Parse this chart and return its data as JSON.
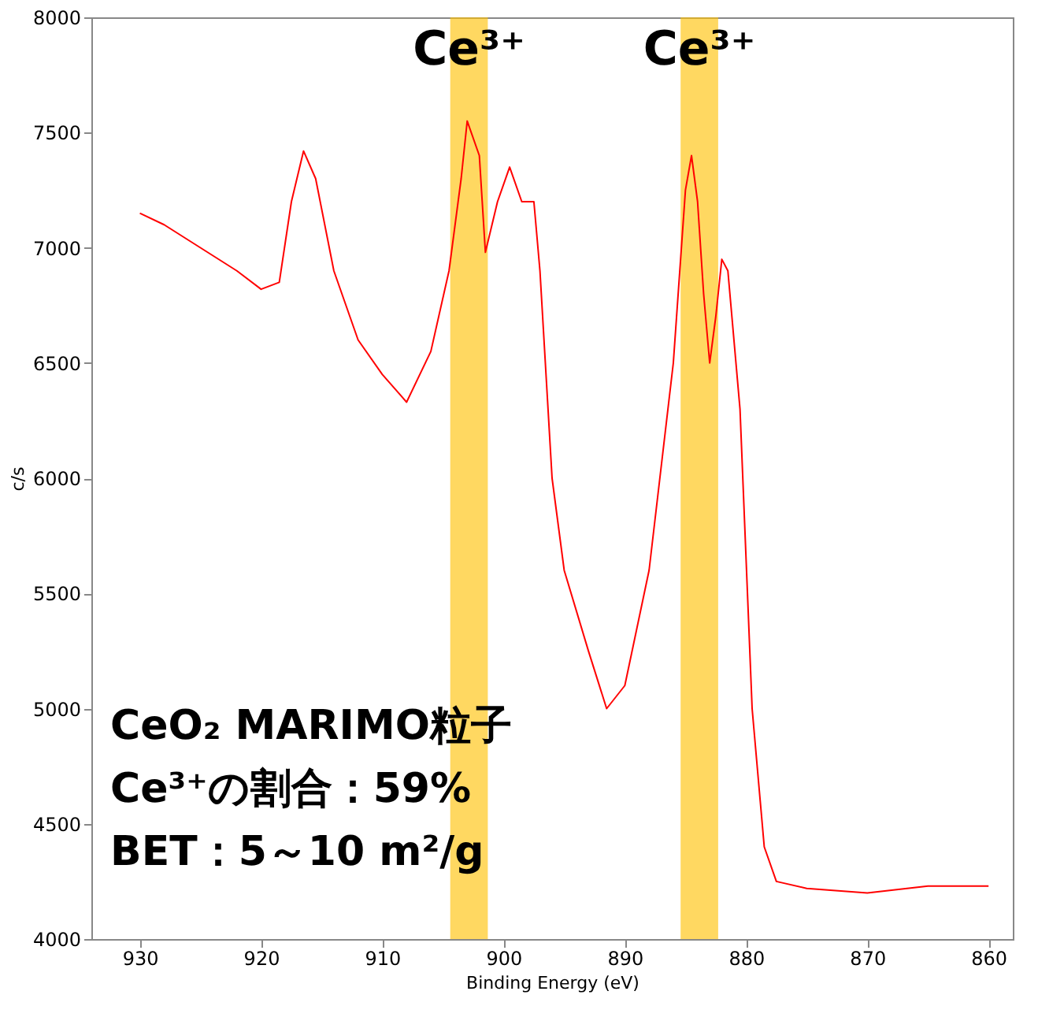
{
  "chart_data": {
    "type": "line",
    "xlabel": "Binding Energy (eV)",
    "ylabel": "c/s",
    "x": [
      930,
      928,
      925,
      922,
      920,
      918.5,
      917.5,
      916.5,
      915.5,
      914,
      912,
      910,
      908,
      906,
      904.5,
      903.5,
      903,
      902,
      901.5,
      900.5,
      899.5,
      898.5,
      897.5,
      897,
      896,
      895,
      893,
      891.5,
      890,
      888,
      886,
      885,
      884.5,
      884,
      883.5,
      883,
      882.5,
      882,
      881.5,
      880.5,
      879.5,
      878.5,
      877.5,
      875,
      870,
      865,
      860
    ],
    "series": [
      {
        "color": "#ff0000",
        "values": [
          7150,
          7100,
          7000,
          6900,
          6820,
          6850,
          7200,
          7420,
          7300,
          6900,
          6600,
          6450,
          6330,
          6550,
          6900,
          7300,
          7550,
          7400,
          6980,
          7200,
          7350,
          7200,
          7200,
          6900,
          6000,
          5600,
          5250,
          5000,
          5100,
          5600,
          6500,
          7250,
          7400,
          7200,
          6800,
          6500,
          6700,
          6950,
          6900,
          6300,
          5000,
          4400,
          4250,
          4220,
          4200,
          4230,
          4230
        ]
      }
    ],
    "xlim": [
      934,
      858
    ],
    "xticks": [
      930,
      920,
      910,
      900,
      890,
      880,
      870,
      860
    ],
    "ylim": [
      4000,
      8000
    ],
    "yticks": [
      4000,
      4500,
      5000,
      5500,
      6000,
      6500,
      7000,
      7500,
      8000
    ],
    "grid": false,
    "bands": [
      {
        "axis": "x",
        "from": 904.4,
        "to": 901.3,
        "label": "Ce³⁺",
        "color": "#ffc000"
      },
      {
        "axis": "x",
        "from": 885.4,
        "to": 882.3,
        "label": "Ce³⁺",
        "color": "#ffc000"
      }
    ],
    "annotations": [
      "CeO₂ MARIMO粒子",
      "Ce³⁺の割合：59%",
      "BET：5～10 m²/g"
    ]
  }
}
